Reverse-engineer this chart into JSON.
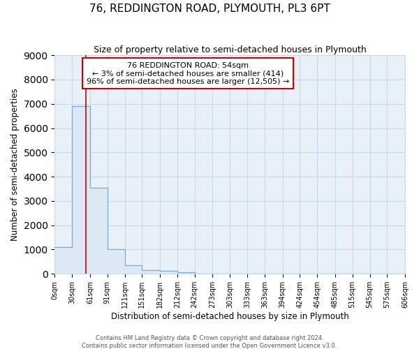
{
  "title": "76, REDDINGTON ROAD, PLYMOUTH, PL3 6PT",
  "subtitle": "Size of property relative to semi-detached houses in Plymouth",
  "xlabel": "Distribution of semi-detached houses by size in Plymouth",
  "ylabel": "Number of semi-detached properties",
  "annotation_line1": "76 REDDINGTON ROAD: 54sqm",
  "annotation_line2": "← 3% of semi-detached houses are smaller (414)",
  "annotation_line3": "96% of semi-detached houses are larger (12,505) →",
  "property_size": 54,
  "bin_edges": [
    0,
    30,
    61,
    91,
    121,
    151,
    182,
    212,
    242,
    273,
    303,
    333,
    363,
    394,
    424,
    454,
    485,
    515,
    545,
    575,
    606
  ],
  "tick_labels": [
    "0sqm",
    "30sqm",
    "61sqm",
    "91sqm",
    "121sqm",
    "151sqm",
    "182sqm",
    "212sqm",
    "242sqm",
    "273sqm",
    "303sqm",
    "333sqm",
    "363sqm",
    "394sqm",
    "424sqm",
    "454sqm",
    "485sqm",
    "515sqm",
    "545sqm",
    "575sqm",
    "606sqm"
  ],
  "bar_values": [
    1100,
    6900,
    3550,
    1000,
    340,
    160,
    110,
    70,
    0,
    0,
    0,
    0,
    0,
    0,
    0,
    0,
    0,
    0,
    0,
    0
  ],
  "bar_fill_color": "#dce9f5",
  "bar_edge_color": "#7aadd4",
  "red_line_x": 54,
  "ylim": [
    0,
    9000
  ],
  "yticks": [
    0,
    1000,
    2000,
    3000,
    4000,
    5000,
    6000,
    7000,
    8000,
    9000
  ],
  "annotation_box_color": "#ffffff",
  "annotation_box_edge": "#cc0000",
  "plot_bg_color": "#e8f0f8",
  "fig_bg_color": "#ffffff",
  "grid_color": "#c8d8e8",
  "footer_line1": "Contains HM Land Registry data © Crown copyright and database right 2024.",
  "footer_line2": "Contains public sector information licensed under the Open Government Licence v3.0."
}
